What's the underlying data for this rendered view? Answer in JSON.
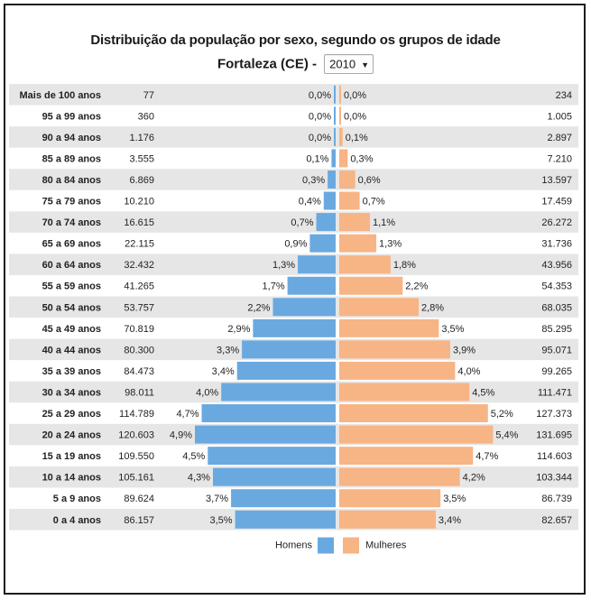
{
  "title": "Distribuição da população por sexo, segundo os grupos de idade",
  "subtitle": "Fortaleza (CE) -",
  "year_select": {
    "selected": "2010"
  },
  "colors": {
    "homens": "#6aa9e0",
    "mulheres": "#f7b485",
    "row_shade": "#e6e6e6"
  },
  "chart_data": {
    "type": "bar",
    "orientation": "population-pyramid",
    "title": "Distribuição da população por sexo, segundo os grupos de idade",
    "subtitle": "Fortaleza (CE) - 2010",
    "categories": [
      "Mais de 100 anos",
      "95 a 99 anos",
      "90 a 94 anos",
      "85 a 89 anos",
      "80 a 84 anos",
      "75 a 79 anos",
      "70 a 74 anos",
      "65 a 69 anos",
      "60 a 64 anos",
      "55 a 59 anos",
      "50 a 54 anos",
      "45 a 49 anos",
      "40 a 44 anos",
      "35 a 39 anos",
      "30 a 34 anos",
      "25 a 29 anos",
      "20 a 24 anos",
      "15 a 19 anos",
      "10 a 14 anos",
      "5 a 9 anos",
      "0 a 4 anos"
    ],
    "series": [
      {
        "name": "Homens",
        "values": [
          "77",
          "360",
          "1.176",
          "3.555",
          "6.869",
          "10.210",
          "16.615",
          "22.115",
          "32.432",
          "41.265",
          "53.757",
          "70.819",
          "80.300",
          "84.473",
          "98.011",
          "114.789",
          "120.603",
          "109.550",
          "105.161",
          "89.624",
          "86.157"
        ],
        "percent": [
          "0,0%",
          "0,0%",
          "0,0%",
          "0,1%",
          "0,3%",
          "0,4%",
          "0,7%",
          "0,9%",
          "1,3%",
          "1,7%",
          "2,2%",
          "2,9%",
          "3,3%",
          "3,4%",
          "4,0%",
          "4,7%",
          "4,9%",
          "4,5%",
          "4,3%",
          "3,7%",
          "3,5%"
        ]
      },
      {
        "name": "Mulheres",
        "values": [
          "234",
          "1.005",
          "2.897",
          "7.210",
          "13.597",
          "17.459",
          "26.272",
          "31.736",
          "43.956",
          "54.353",
          "68.035",
          "85.295",
          "95.071",
          "99.265",
          "111.471",
          "127.373",
          "131.695",
          "114.603",
          "103.344",
          "86.739",
          "82.657"
        ],
        "percent": [
          "0,0%",
          "0,0%",
          "0,1%",
          "0,3%",
          "0,6%",
          "0,7%",
          "1,1%",
          "1,3%",
          "1,8%",
          "2,2%",
          "2,8%",
          "3,5%",
          "3,9%",
          "4,0%",
          "4,5%",
          "5,2%",
          "5,4%",
          "4,7%",
          "4,2%",
          "3,5%",
          "3,4%"
        ]
      }
    ],
    "legend": [
      "Homens",
      "Mulheres"
    ],
    "legend_position": "bottom-center",
    "grid": false
  }
}
